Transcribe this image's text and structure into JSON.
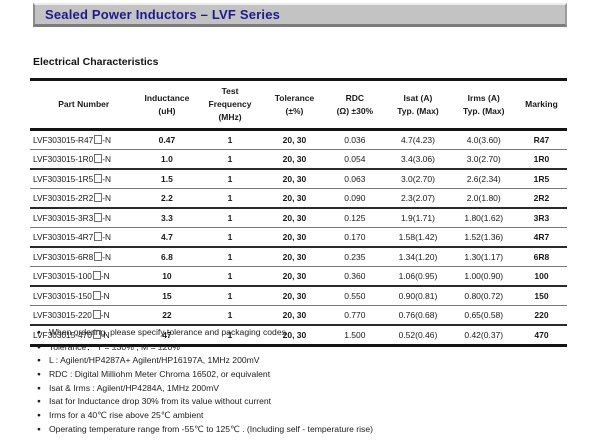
{
  "page": {
    "title": "Sealed Power Inductors – LVF Series",
    "section_heading": "Electrical Characteristics"
  },
  "colors": {
    "title_text": "#1b1b8c",
    "title_bar_bg": "#c3c3c3",
    "body_text": "#1f1f1f",
    "rule": "#141414"
  },
  "table": {
    "columns": [
      {
        "key": "part_number",
        "lines": [
          "Part Number"
        ]
      },
      {
        "key": "inductance",
        "lines": [
          "Inductance",
          "(uH)"
        ]
      },
      {
        "key": "test_frequency",
        "lines": [
          "Test",
          "Frequency",
          "(MHz)"
        ]
      },
      {
        "key": "tolerance",
        "lines": [
          "Tolerance",
          "(±%)"
        ]
      },
      {
        "key": "rdc",
        "lines": [
          "RDC",
          "(Ω) ±30%"
        ]
      },
      {
        "key": "isat",
        "lines": [
          "Isat (A)",
          "Typ. (Max)"
        ]
      },
      {
        "key": "irms",
        "lines": [
          "Irms (A)",
          "Typ. (Max)"
        ]
      },
      {
        "key": "marking",
        "lines": [
          "Marking"
        ]
      }
    ],
    "rows": [
      {
        "part_prefix": "LVF303015-R47",
        "part_suffix": "-N",
        "inductance": "0.47",
        "test_frequency": "1",
        "tolerance": "20, 30",
        "rdc": "0.036",
        "isat": "4.7(4.23)",
        "irms": "4.0(3.60)",
        "marking": "R47"
      },
      {
        "part_prefix": "LVF303015-1R0",
        "part_suffix": "-N",
        "inductance": "1.0",
        "test_frequency": "1",
        "tolerance": "20, 30",
        "rdc": "0.054",
        "isat": "3.4(3.06)",
        "irms": "3.0(2.70)",
        "marking": "1R0"
      },
      {
        "part_prefix": "LVF303015-1R5",
        "part_suffix": "-N",
        "inductance": "1.5",
        "test_frequency": "1",
        "tolerance": "20, 30",
        "rdc": "0.063",
        "isat": "3.0(2.70)",
        "irms": "2.6(2.34)",
        "marking": "1R5"
      },
      {
        "part_prefix": "LVF303015-2R2",
        "part_suffix": "-N",
        "inductance": "2.2",
        "test_frequency": "1",
        "tolerance": "20, 30",
        "rdc": "0.090",
        "isat": "2.3(2.07)",
        "irms": "2.0(1.80)",
        "marking": "2R2"
      },
      {
        "part_prefix": "LVF303015-3R3",
        "part_suffix": "-N",
        "inductance": "3.3",
        "test_frequency": "1",
        "tolerance": "20, 30",
        "rdc": "0.125",
        "isat": "1.9(1.71)",
        "irms": "1.80(1.62)",
        "marking": "3R3"
      },
      {
        "part_prefix": "LVF303015-4R7",
        "part_suffix": "-N",
        "inductance": "4.7",
        "test_frequency": "1",
        "tolerance": "20, 30",
        "rdc": "0.170",
        "isat": "1.58(1.42)",
        "irms": "1.52(1.36)",
        "marking": "4R7"
      },
      {
        "part_prefix": "LVF303015-6R8",
        "part_suffix": "-N",
        "inductance": "6.8",
        "test_frequency": "1",
        "tolerance": "20, 30",
        "rdc": "0.235",
        "isat": "1.34(1.20)",
        "irms": "1.30(1.17)",
        "marking": "6R8"
      },
      {
        "part_prefix": "LVF303015-100",
        "part_suffix": "-N",
        "inductance": "10",
        "test_frequency": "1",
        "tolerance": "20, 30",
        "rdc": "0.360",
        "isat": "1.06(0.95)",
        "irms": "1.00(0.90)",
        "marking": "100"
      },
      {
        "part_prefix": "LVF303015-150",
        "part_suffix": "-N",
        "inductance": "15",
        "test_frequency": "1",
        "tolerance": "20, 30",
        "rdc": "0.550",
        "isat": "0.90(0.81)",
        "irms": "0.80(0.72)",
        "marking": "150"
      },
      {
        "part_prefix": "LVF303015-220",
        "part_suffix": "-N",
        "inductance": "22",
        "test_frequency": "1",
        "tolerance": "20, 30",
        "rdc": "0.770",
        "isat": "0.76(0.68)",
        "irms": "0.65(0.58)",
        "marking": "220"
      },
      {
        "part_prefix": "LVF303015-470",
        "part_suffix": "-N",
        "inductance": "47",
        "test_frequency": "1",
        "tolerance": "20, 30",
        "rdc": "1.500",
        "isat": "0.52(0.46)",
        "irms": "0.42(0.37)",
        "marking": "470"
      }
    ]
  },
  "notes": {
    "bullet": "●",
    "items": [
      "When ordering, please specify tolerance and packaging codes",
      "Tolerance：  T = ±30% , M = ±20%",
      "L : Agilent/HP4287A+ Agilent/HP16197A, 1MHz 200mV",
      "RDC : Digital Milliohm Meter Chroma 16502, or equivalent",
      "Isat & Irms : Agilent/HP4284A, 1MHz 200mV",
      "Isat for Inductance drop 30% from its value without current",
      "Irms for a 40℃  rise above 25℃  ambient",
      "Operating temperature range from -55℃  to 125℃ . (Including self - temperature rise)"
    ]
  }
}
